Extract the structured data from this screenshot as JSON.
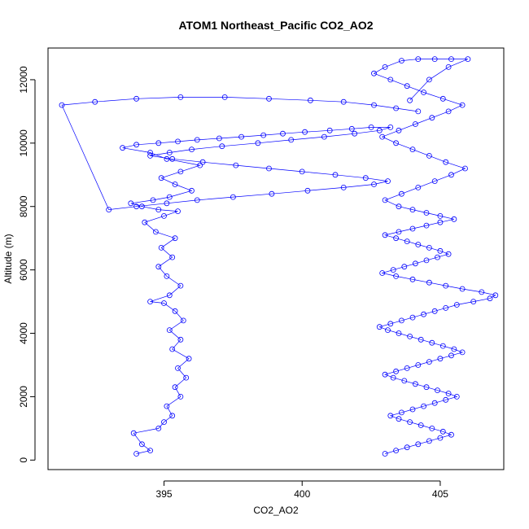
{
  "chart_data": {
    "type": "scatter",
    "title": "ATOM1 Northeast_Pacific CO2_AO2",
    "xlabel": "CO2_AO2",
    "ylabel": "Altitude (m)",
    "xlim": [
      390.8,
      407.3
    ],
    "ylim": [
      -300,
      13000
    ],
    "xticks": [
      395,
      400,
      405
    ],
    "yticks": [
      0,
      2000,
      4000,
      6000,
      8000,
      10000,
      12000
    ],
    "xtick_labels": [
      "395",
      "400",
      "405"
    ],
    "ytick_labels": [
      "0",
      "2000",
      "4000",
      "6000",
      "8000",
      "10000",
      "12000"
    ],
    "grid": false,
    "legend": "none",
    "marker": "open-circle",
    "connect_points": true,
    "color": "#0000ff",
    "series": [
      {
        "x": [
          394.0,
          394.5,
          394.2,
          393.9,
          394.8,
          395.0,
          395.3,
          395.1,
          395.6,
          395.4,
          395.8,
          395.5,
          395.9,
          395.3,
          395.6,
          395.2,
          395.7,
          395.4,
          395.0,
          394.5,
          395.2,
          395.6,
          395.1,
          394.8,
          395.3,
          394.9,
          395.4,
          394.7,
          394.3,
          395.0,
          395.5,
          394.8,
          394.2,
          393.8,
          394.6,
          395.2,
          396.0,
          395.4,
          394.9,
          395.6,
          396.3,
          395.1,
          394.5,
          393.5,
          394.0,
          394.8,
          395.5,
          396.2,
          397.0,
          397.8,
          398.6,
          399.3,
          400.1,
          401.0,
          401.8,
          402.5,
          403.2,
          402.8,
          401.9,
          400.8,
          399.6,
          398.4,
          397.1,
          396.0,
          395.2,
          394.5,
          395.3,
          396.4,
          397.6,
          398.8,
          400.0,
          401.2,
          402.3,
          403.1,
          402.6,
          401.5,
          400.2,
          398.9,
          397.5,
          396.2,
          395.1,
          394.0,
          393.0,
          391.3,
          392.5,
          394.0,
          395.6,
          397.2,
          398.8,
          400.3,
          401.5,
          402.6,
          403.4,
          404.2
        ],
        "y": [
          200,
          300,
          500,
          850,
          1000,
          1200,
          1400,
          1700,
          2000,
          2300,
          2600,
          2900,
          3200,
          3500,
          3800,
          4100,
          4400,
          4700,
          4950,
          5000,
          5200,
          5500,
          5800,
          6100,
          6400,
          6700,
          7000,
          7200,
          7500,
          7700,
          7850,
          7900,
          8000,
          8100,
          8200,
          8300,
          8500,
          8700,
          8900,
          9100,
          9300,
          9500,
          9700,
          9850,
          9950,
          10000,
          10050,
          10100,
          10150,
          10200,
          10250,
          10300,
          10350,
          10400,
          10450,
          10500,
          10500,
          10400,
          10300,
          10200,
          10100,
          10000,
          9900,
          9800,
          9700,
          9600,
          9500,
          9400,
          9300,
          9200,
          9100,
          9000,
          8900,
          8800,
          8700,
          8600,
          8500,
          8400,
          8300,
          8200,
          8100,
          8000,
          7900,
          11200,
          11300,
          11400,
          11450,
          11450,
          11400,
          11350,
          11300,
          11200,
          11100,
          11000
        ]
      },
      {
        "x": [
          403.0,
          403.4,
          403.8,
          404.2,
          404.6,
          405.0,
          405.4,
          405.1,
          404.7,
          404.3,
          403.9,
          403.5,
          403.2,
          403.6,
          404.0,
          404.4,
          404.8,
          405.2,
          405.6,
          405.3,
          404.9,
          404.5,
          404.1,
          403.7,
          403.3,
          403.0,
          403.4,
          403.8,
          404.2,
          404.6,
          405.0,
          405.4,
          405.8,
          405.5,
          405.1,
          404.7,
          404.3,
          403.9,
          403.5,
          403.1,
          402.8,
          403.2,
          403.6,
          404.0,
          404.4,
          404.8,
          405.2,
          405.6,
          406.2,
          406.8,
          407.0,
          406.5,
          405.8,
          405.2,
          404.6,
          404.0,
          403.4,
          402.9,
          403.3,
          403.7,
          404.1,
          404.5,
          404.9,
          405.3,
          405.0,
          404.6,
          404.2,
          403.8,
          403.4,
          403.0,
          403.5,
          404.0,
          404.5,
          405.0,
          405.5,
          405.0,
          404.5,
          404.0,
          403.5,
          403.0,
          403.6,
          404.2,
          404.8,
          405.4,
          405.9,
          405.2,
          404.6,
          404.0,
          403.4,
          402.9,
          403.5,
          404.1,
          404.7,
          405.3,
          405.8,
          405.1,
          404.4,
          403.8,
          403.2,
          402.6,
          403.0,
          403.6,
          404.2,
          404.8,
          405.4,
          406.0,
          405.3,
          404.6,
          403.9
        ],
        "y": [
          200,
          300,
          400,
          500,
          600,
          700,
          800,
          900,
          1000,
          1100,
          1200,
          1300,
          1400,
          1500,
          1600,
          1700,
          1800,
          1900,
          2000,
          2100,
          2200,
          2300,
          2400,
          2500,
          2600,
          2700,
          2800,
          2900,
          3000,
          3100,
          3200,
          3300,
          3400,
          3500,
          3600,
          3700,
          3800,
          3900,
          4000,
          4100,
          4200,
          4300,
          4400,
          4500,
          4600,
          4700,
          4800,
          4900,
          5000,
          5100,
          5200,
          5300,
          5400,
          5500,
          5600,
          5700,
          5800,
          5900,
          6000,
          6100,
          6200,
          6300,
          6400,
          6500,
          6600,
          6700,
          6800,
          6900,
          7000,
          7100,
          7200,
          7300,
          7400,
          7500,
          7600,
          7700,
          7800,
          7900,
          8000,
          8200,
          8400,
          8600,
          8800,
          9000,
          9200,
          9400,
          9600,
          9800,
          10000,
          10200,
          10400,
          10600,
          10800,
          11000,
          11200,
          11400,
          11600,
          11800,
          12000,
          12200,
          12400,
          12600,
          12650,
          12650,
          12650,
          12650,
          12400,
          12000,
          11350
        ]
      }
    ]
  }
}
